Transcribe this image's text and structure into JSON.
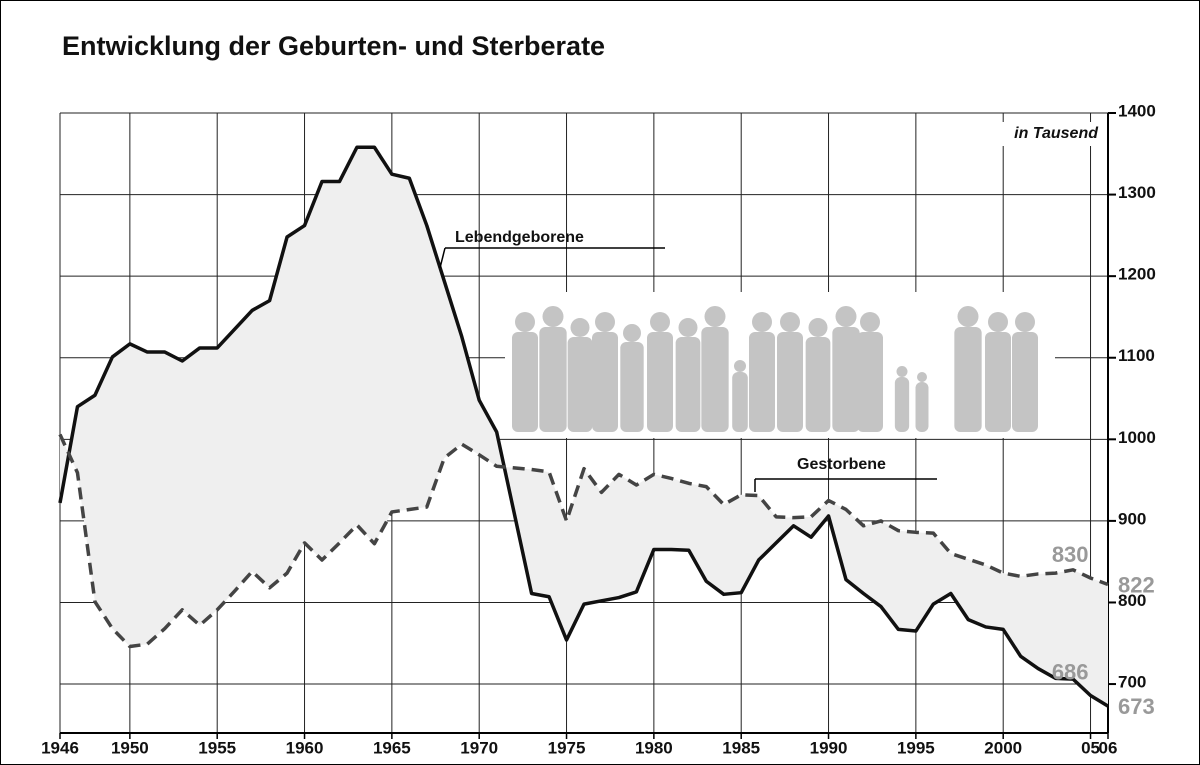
{
  "chart_data": {
    "type": "line",
    "title": "Entwicklung der Geburten- und Sterberate",
    "unit_label": "in Tausend",
    "x": [
      1946,
      1947,
      1948,
      1949,
      1950,
      1951,
      1952,
      1953,
      1954,
      1955,
      1956,
      1957,
      1958,
      1959,
      1960,
      1961,
      1962,
      1963,
      1964,
      1965,
      1966,
      1967,
      1968,
      1969,
      1970,
      1971,
      1972,
      1973,
      1974,
      1975,
      1976,
      1977,
      1978,
      1979,
      1980,
      1981,
      1982,
      1983,
      1984,
      1985,
      1986,
      1987,
      1988,
      1989,
      1990,
      1991,
      1992,
      1993,
      1994,
      1995,
      1996,
      1997,
      1998,
      1999,
      2000,
      2001,
      2002,
      2003,
      2004,
      2005,
      2006
    ],
    "xlim": [
      1946,
      2006
    ],
    "xticks": [
      1946,
      1950,
      1955,
      1960,
      1965,
      1970,
      1975,
      1980,
      1985,
      1990,
      1995,
      2000,
      {
        "value": 2005,
        "label": "05"
      },
      {
        "value": 2006,
        "label": "06"
      }
    ],
    "ylim": [
      640,
      1400
    ],
    "yticks": [
      700,
      800,
      900,
      1000,
      1100,
      1200,
      1300,
      1400
    ],
    "grid": true,
    "fill_between": true,
    "series": [
      {
        "name": "Lebendgeborene",
        "color": "#111111",
        "dash": false,
        "values": [
          922,
          1040,
          1054,
          1101,
          1117,
          1107,
          1107,
          1096,
          1112,
          1112,
          1135,
          1158,
          1170,
          1248,
          1262,
          1316,
          1316,
          1358,
          1358,
          1325,
          1320,
          1262,
          1194,
          1126,
          1048,
          1009,
          910,
          811,
          807,
          754,
          798,
          802,
          806,
          813,
          865,
          865,
          864,
          826,
          810,
          812,
          852,
          873,
          894,
          880,
          906,
          828,
          811,
          795,
          767,
          765,
          798,
          811,
          779,
          770,
          767,
          734,
          719,
          707,
          706,
          686,
          673
        ]
      },
      {
        "name": "Gestorbene",
        "color": "#444444",
        "dash": true,
        "values": [
          1006,
          959,
          801,
          768,
          746,
          749,
          768,
          791,
          772,
          791,
          814,
          838,
          818,
          836,
          873,
          852,
          873,
          895,
          872,
          911,
          914,
          917,
          977,
          994,
          981,
          967,
          965,
          963,
          960,
          900,
          964,
          935,
          957,
          944,
          957,
          952,
          946,
          942,
          920,
          932,
          931,
          905,
          904,
          905,
          925,
          914,
          894,
          900,
          888,
          886,
          885,
          860,
          853,
          846,
          836,
          832,
          835,
          836,
          840,
          830,
          822
        ]
      }
    ]
  }
}
